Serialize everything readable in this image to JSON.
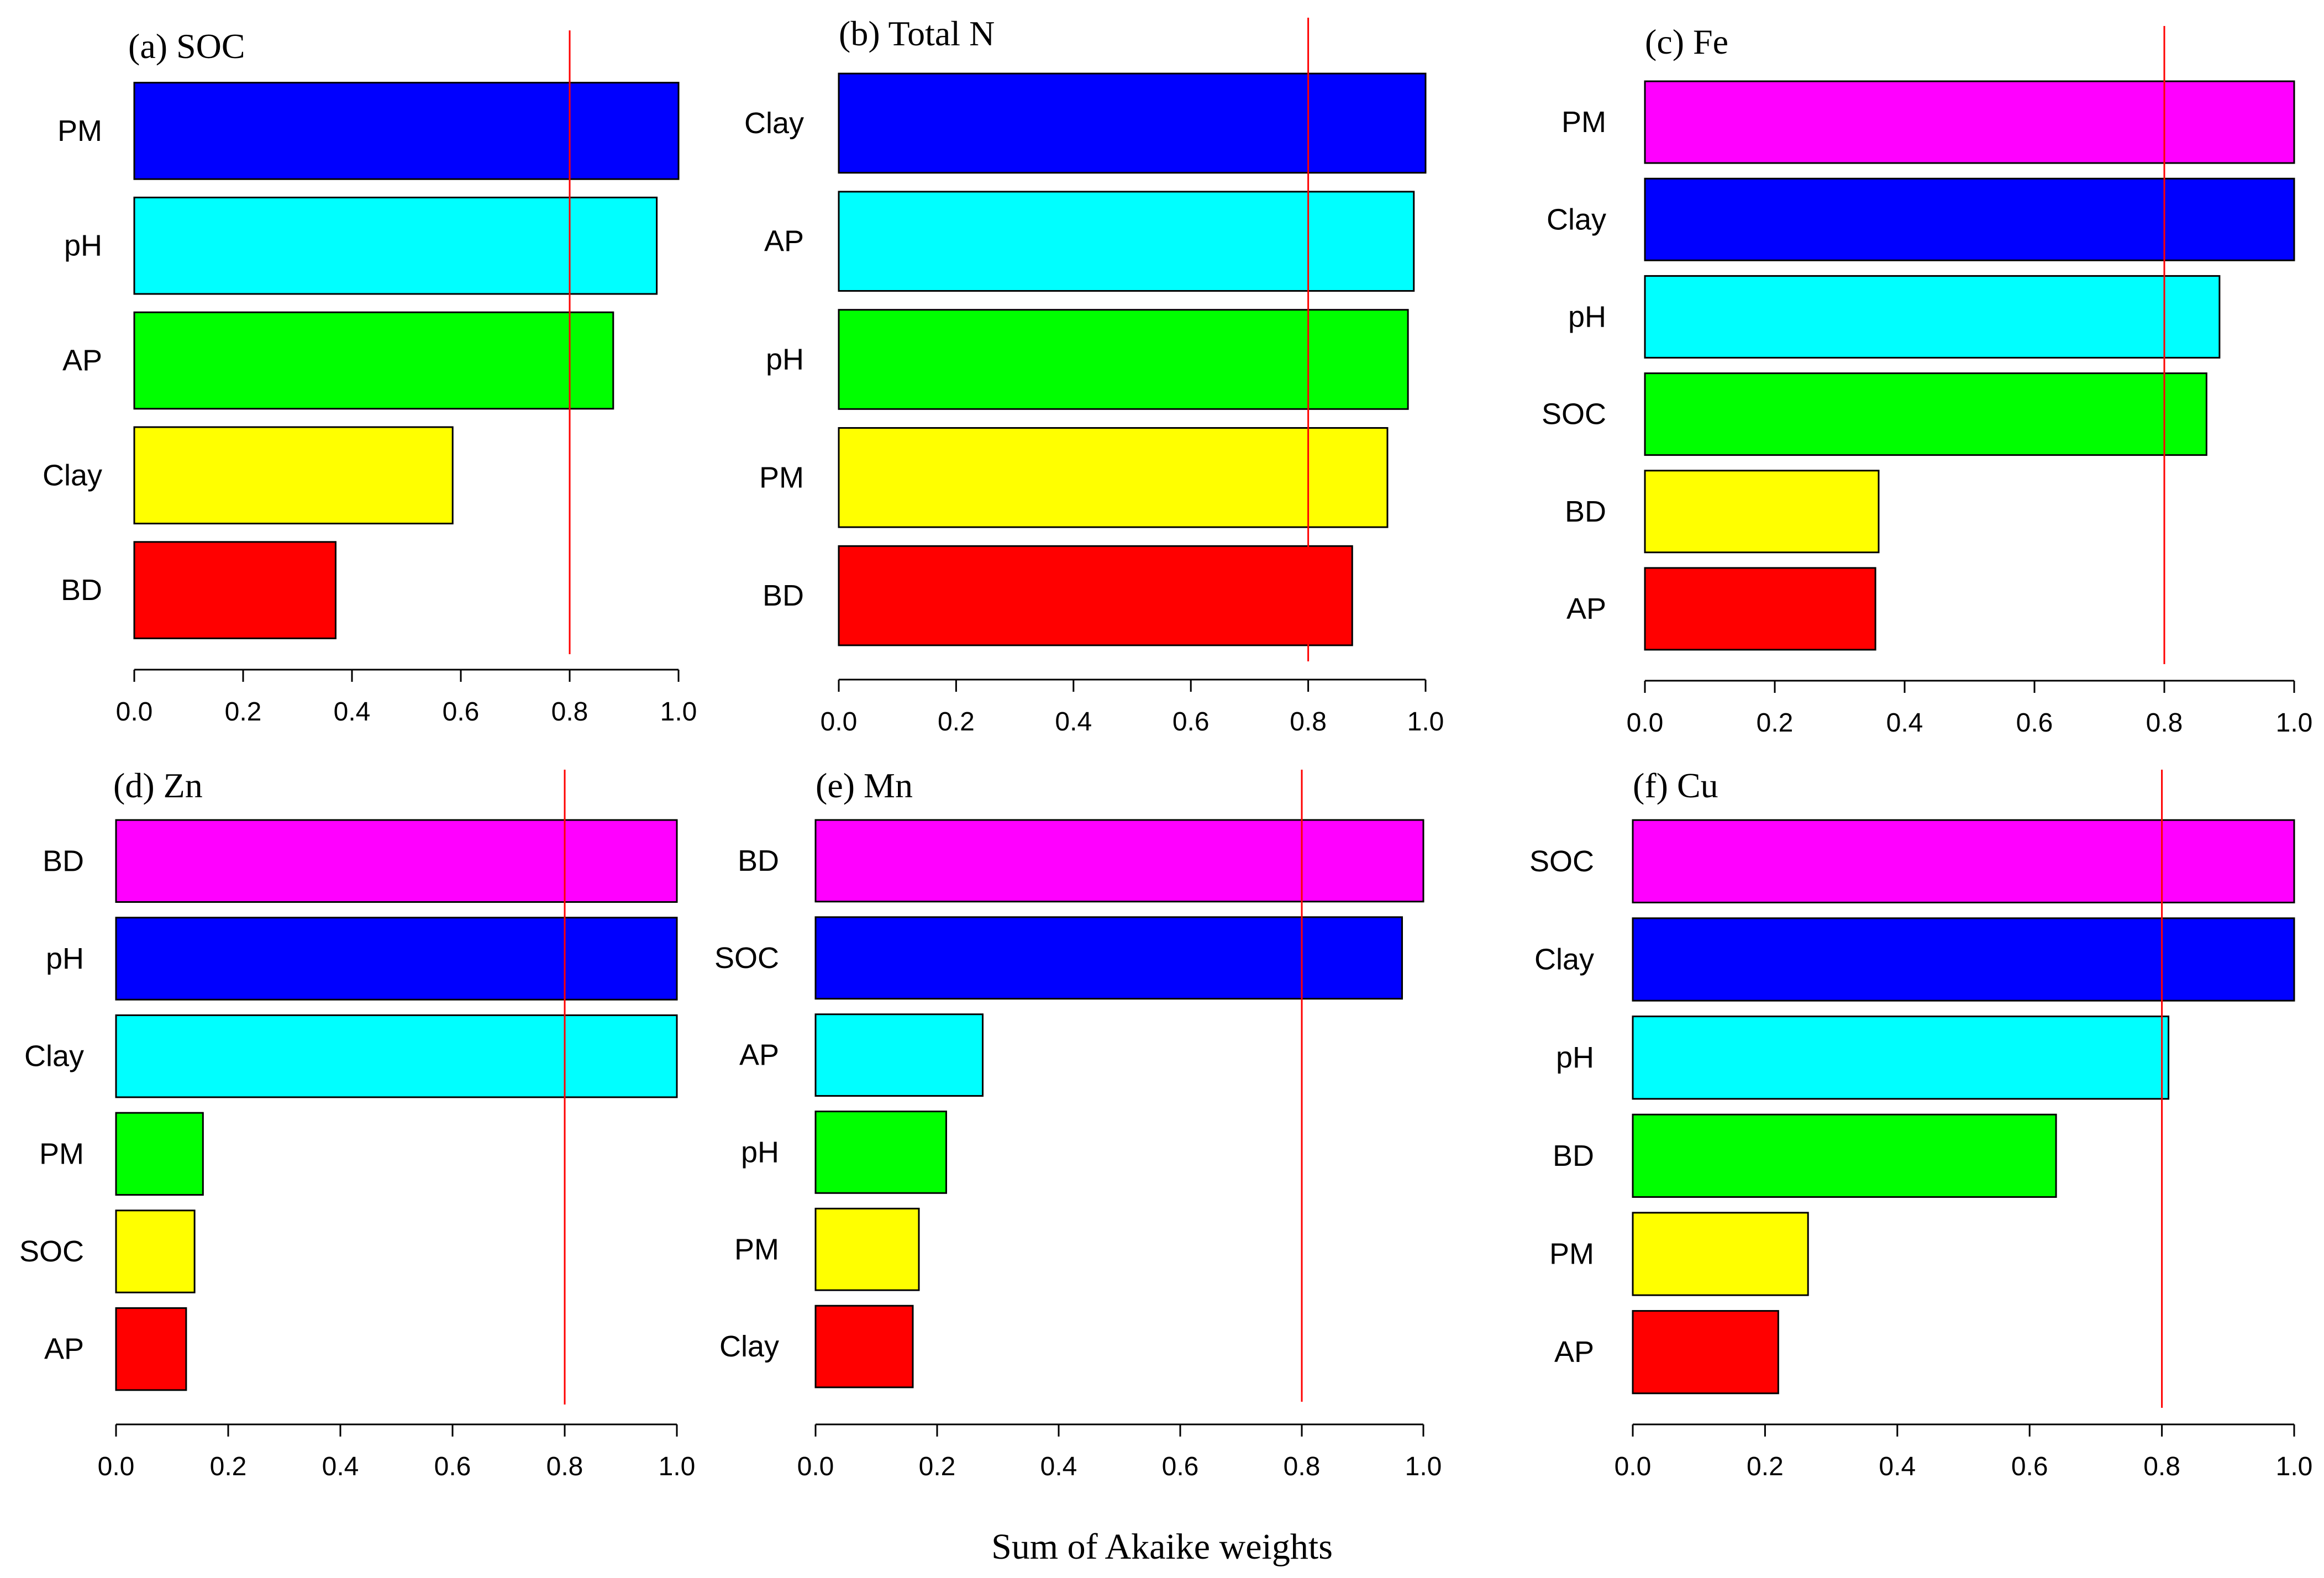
{
  "xlabel": "Sum of Akaike weights",
  "chart_data": [
    {
      "type": "bar",
      "title": "(a) SOC",
      "categories": [
        "PM",
        "pH",
        "AP",
        "Clay",
        "BD"
      ],
      "values": [
        1.0,
        0.96,
        0.88,
        0.585,
        0.37
      ],
      "colors": [
        "#0000ff",
        "#00ffff",
        "#00ff00",
        "#ffff00",
        "#ff0000"
      ],
      "threshold": 0.8,
      "xlim": [
        0,
        1
      ],
      "ticks": [
        "0.0",
        "0.2",
        "0.4",
        "0.6",
        "0.8",
        "1.0"
      ]
    },
    {
      "type": "bar",
      "title": "(b) Total N",
      "categories": [
        "Clay",
        "AP",
        "pH",
        "PM",
        "BD"
      ],
      "values": [
        1.0,
        0.98,
        0.97,
        0.935,
        0.875
      ],
      "colors": [
        "#0000ff",
        "#00ffff",
        "#00ff00",
        "#ffff00",
        "#ff0000"
      ],
      "threshold": 0.8,
      "xlim": [
        0,
        1
      ],
      "ticks": [
        "0.0",
        "0.2",
        "0.4",
        "0.6",
        "0.8",
        "1.0"
      ]
    },
    {
      "type": "bar",
      "title": "(c) Fe",
      "categories": [
        "PM",
        "Clay",
        "pH",
        "SOC",
        "BD",
        "AP"
      ],
      "values": [
        1.0,
        1.0,
        0.885,
        0.865,
        0.36,
        0.355
      ],
      "colors": [
        "#ff00ff",
        "#0000ff",
        "#00ffff",
        "#00ff00",
        "#ffff00",
        "#ff0000"
      ],
      "threshold": 0.8,
      "xlim": [
        0,
        1
      ],
      "ticks": [
        "0.0",
        "0.2",
        "0.4",
        "0.6",
        "0.8",
        "1.0"
      ]
    },
    {
      "type": "bar",
      "title": "(d) Zn",
      "categories": [
        "BD",
        "pH",
        "Clay",
        "PM",
        "SOC",
        "AP"
      ],
      "values": [
        1.0,
        1.0,
        1.0,
        0.155,
        0.14,
        0.125
      ],
      "colors": [
        "#ff00ff",
        "#0000ff",
        "#00ffff",
        "#00ff00",
        "#ffff00",
        "#ff0000"
      ],
      "threshold": 0.8,
      "xlim": [
        0,
        1
      ],
      "ticks": [
        "0.0",
        "0.2",
        "0.4",
        "0.6",
        "0.8",
        "1.0"
      ]
    },
    {
      "type": "bar",
      "title": "(e) Mn",
      "categories": [
        "BD",
        "SOC",
        "AP",
        "pH",
        "PM",
        "Clay"
      ],
      "values": [
        1.0,
        0.965,
        0.275,
        0.215,
        0.17,
        0.16
      ],
      "colors": [
        "#ff00ff",
        "#0000ff",
        "#00ffff",
        "#00ff00",
        "#ffff00",
        "#ff0000"
      ],
      "threshold": 0.8,
      "xlim": [
        0,
        1
      ],
      "ticks": [
        "0.0",
        "0.2",
        "0.4",
        "0.6",
        "0.8",
        "1.0"
      ]
    },
    {
      "type": "bar",
      "title": "(f) Cu",
      "categories": [
        "SOC",
        "Clay",
        "pH",
        "BD",
        "PM",
        "AP"
      ],
      "values": [
        1.0,
        1.0,
        0.81,
        0.64,
        0.265,
        0.22
      ],
      "colors": [
        "#ff00ff",
        "#0000ff",
        "#00ffff",
        "#00ff00",
        "#ffff00",
        "#ff0000"
      ],
      "threshold": 0.8,
      "xlim": [
        0,
        1
      ],
      "ticks": [
        "0.0",
        "0.2",
        "0.4",
        "0.6",
        "0.8",
        "1.0"
      ]
    }
  ]
}
